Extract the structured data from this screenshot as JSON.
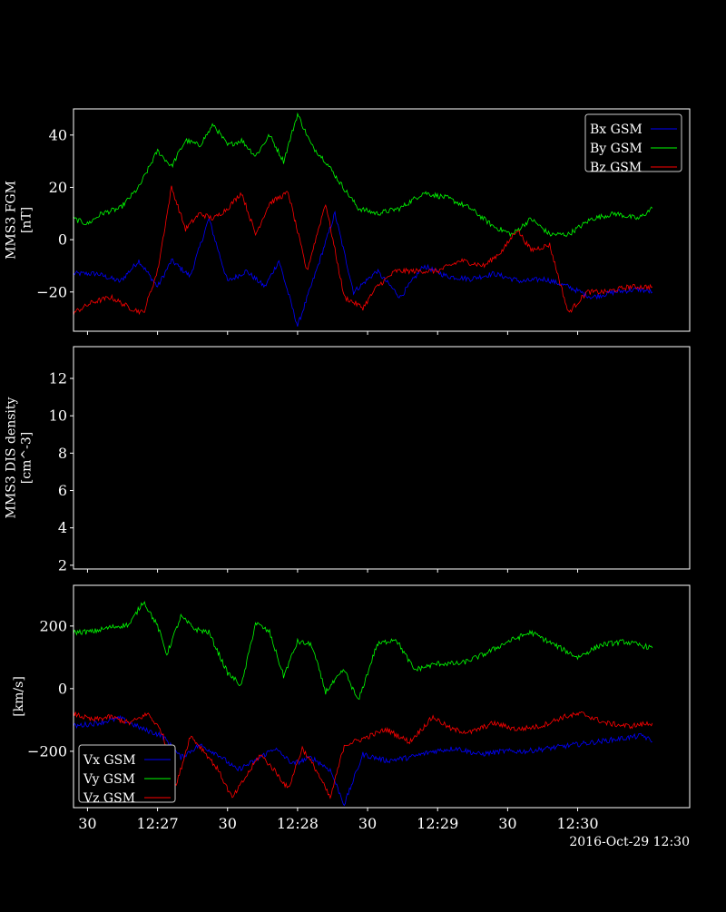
{
  "figure": {
    "background": "#000000",
    "foreground": "#ffffff",
    "date_label": "2016-Oct-29 12:30"
  },
  "chart_data": [
    {
      "type": "line",
      "id": "fgm",
      "ylabel_lines": [
        "MMS3 FGM",
        "[nT]"
      ],
      "xlim": [
        "12:26:24",
        "12:30:48"
      ],
      "ylim": [
        -35,
        50
      ],
      "yticks": [
        -20,
        0,
        20,
        40
      ],
      "ytick_labels": [
        "−20",
        "0",
        "20",
        "40"
      ],
      "legend_position": "upper-right",
      "grid": false,
      "series": [
        {
          "name": "Bx GSM",
          "color": "#0000ff",
          "t": [
            "12:26:24",
            "12:26:34",
            "12:26:44",
            "12:26:52",
            "12:27:00",
            "12:27:06",
            "12:27:14",
            "12:27:22",
            "12:27:30",
            "12:27:38",
            "12:27:46",
            "12:27:52",
            "12:28:00",
            "12:28:08",
            "12:28:16",
            "12:28:24",
            "12:28:34",
            "12:28:44",
            "12:28:54",
            "12:29:04",
            "12:29:14",
            "12:29:24",
            "12:29:36",
            "12:29:46",
            "12:29:56",
            "12:30:06",
            "12:30:16",
            "12:30:26",
            "12:30:32"
          ],
          "values": [
            -13,
            -13,
            -16,
            -8,
            -18,
            -8,
            -14,
            8,
            -16,
            -12,
            -18,
            -8,
            -33,
            -12,
            10,
            -20,
            -12,
            -22,
            -10,
            -14,
            -15,
            -13,
            -16,
            -15,
            -18,
            -22,
            -20,
            -19,
            -20
          ]
        },
        {
          "name": "By GSM",
          "color": "#00ff00",
          "t": [
            "12:26:24",
            "12:26:30",
            "12:26:36",
            "12:26:44",
            "12:26:52",
            "12:27:00",
            "12:27:06",
            "12:27:12",
            "12:27:18",
            "12:27:24",
            "12:27:30",
            "12:27:36",
            "12:27:42",
            "12:27:48",
            "12:27:54",
            "12:28:00",
            "12:28:06",
            "12:28:12",
            "12:28:18",
            "12:28:26",
            "12:28:34",
            "12:28:44",
            "12:28:54",
            "12:29:04",
            "12:29:14",
            "12:29:24",
            "12:29:32",
            "12:29:40",
            "12:29:48",
            "12:29:56",
            "12:30:06",
            "12:30:16",
            "12:30:26",
            "12:30:32"
          ],
          "values": [
            8,
            6,
            10,
            12,
            20,
            34,
            28,
            38,
            36,
            44,
            36,
            38,
            32,
            40,
            30,
            48,
            36,
            30,
            22,
            12,
            10,
            12,
            18,
            16,
            12,
            5,
            2,
            8,
            2,
            2,
            8,
            10,
            8,
            12
          ]
        },
        {
          "name": "Bz GSM",
          "color": "#ff0000",
          "t": [
            "12:26:24",
            "12:26:32",
            "12:26:40",
            "12:26:48",
            "12:26:54",
            "12:27:00",
            "12:27:06",
            "12:27:12",
            "12:27:18",
            "12:27:24",
            "12:27:30",
            "12:27:36",
            "12:27:42",
            "12:27:48",
            "12:27:56",
            "12:28:04",
            "12:28:12",
            "12:28:20",
            "12:28:28",
            "12:28:34",
            "12:28:42",
            "12:28:50",
            "12:29:00",
            "12:29:10",
            "12:29:20",
            "12:29:28",
            "12:29:34",
            "12:29:40",
            "12:29:48",
            "12:29:56",
            "12:30:04",
            "12:30:12",
            "12:30:22",
            "12:30:32"
          ],
          "values": [
            -28,
            -24,
            -22,
            -26,
            -28,
            -12,
            20,
            4,
            10,
            8,
            12,
            18,
            2,
            14,
            18,
            -12,
            14,
            -22,
            -26,
            -18,
            -12,
            -12,
            -12,
            -8,
            -10,
            -4,
            4,
            -4,
            -2,
            -28,
            -20,
            -20,
            -18,
            -18
          ]
        }
      ]
    },
    {
      "type": "line",
      "id": "dis-density",
      "ylabel_lines": [
        "MMS3 DIS density",
        "[cm^-3]"
      ],
      "xlim": [
        "12:26:24",
        "12:30:48"
      ],
      "ylim": [
        1.8,
        13.7
      ],
      "yticks": [
        2,
        4,
        6,
        8,
        10,
        12
      ],
      "ytick_labels": [
        "2",
        "4",
        "6",
        "8",
        "10",
        "12"
      ],
      "grid": false,
      "series": []
    },
    {
      "type": "line",
      "id": "velocity",
      "ylabel_lines": [
        "[km/s]"
      ],
      "xlim": [
        "12:26:24",
        "12:30:48"
      ],
      "ylim": [
        -380,
        330
      ],
      "yticks": [
        -200,
        0,
        200
      ],
      "ytick_labels": [
        "−200",
        "0",
        "200"
      ],
      "legend_position": "lower-left",
      "grid": false,
      "xtick_times": [
        "12:26:30",
        "12:27:00",
        "12:27:30",
        "12:28:00",
        "12:28:30",
        "12:29:00",
        "12:29:30",
        "12:30:00"
      ],
      "xtick_labels": [
        "30",
        "12:27",
        "30",
        "12:28",
        "30",
        "12:29",
        "30",
        "12:30"
      ],
      "series": [
        {
          "name": "Vx GSM",
          "color": "#0000ff",
          "t": [
            "12:26:24",
            "12:26:34",
            "12:26:44",
            "12:26:54",
            "12:27:02",
            "12:27:10",
            "12:27:18",
            "12:27:26",
            "12:27:34",
            "12:27:42",
            "12:27:50",
            "12:27:58",
            "12:28:06",
            "12:28:14",
            "12:28:20",
            "12:28:28",
            "12:28:38",
            "12:28:48",
            "12:28:58",
            "12:29:08",
            "12:29:18",
            "12:29:28",
            "12:29:38",
            "12:29:48",
            "12:29:58",
            "12:30:08",
            "12:30:18",
            "12:30:28",
            "12:30:32"
          ],
          "values": [
            -120,
            -110,
            -95,
            -130,
            -150,
            -220,
            -180,
            -210,
            -260,
            -230,
            -190,
            -240,
            -220,
            -260,
            -370,
            -210,
            -230,
            -220,
            -200,
            -190,
            -210,
            -200,
            -200,
            -190,
            -180,
            -170,
            -160,
            -150,
            -170
          ]
        },
        {
          "name": "Vy GSM",
          "color": "#00ff00",
          "t": [
            "12:26:24",
            "12:26:32",
            "12:26:40",
            "12:26:48",
            "12:26:54",
            "12:27:00",
            "12:27:04",
            "12:27:10",
            "12:27:16",
            "12:27:22",
            "12:27:30",
            "12:27:36",
            "12:27:42",
            "12:27:48",
            "12:27:54",
            "12:28:00",
            "12:28:06",
            "12:28:12",
            "12:28:20",
            "12:28:26",
            "12:28:34",
            "12:28:42",
            "12:28:50",
            "12:29:00",
            "12:29:10",
            "12:29:20",
            "12:29:30",
            "12:29:40",
            "12:29:50",
            "12:30:00",
            "12:30:10",
            "12:30:20",
            "12:30:32"
          ],
          "values": [
            180,
            182,
            196,
            205,
            280,
            200,
            110,
            230,
            190,
            180,
            50,
            10,
            210,
            180,
            40,
            150,
            140,
            -10,
            60,
            -40,
            140,
            160,
            60,
            80,
            80,
            110,
            150,
            180,
            140,
            100,
            140,
            150,
            130
          ]
        },
        {
          "name": "Vz GSM",
          "color": "#ff0000",
          "t": [
            "12:26:24",
            "12:26:32",
            "12:26:40",
            "12:26:48",
            "12:26:56",
            "12:27:02",
            "12:27:08",
            "12:27:14",
            "12:27:20",
            "12:27:26",
            "12:27:32",
            "12:27:38",
            "12:27:44",
            "12:27:50",
            "12:27:56",
            "12:28:02",
            "12:28:08",
            "12:28:14",
            "12:28:20",
            "12:28:28",
            "12:28:38",
            "12:28:48",
            "12:28:58",
            "12:29:06",
            "12:29:14",
            "12:29:24",
            "12:29:34",
            "12:29:44",
            "12:29:54",
            "12:30:02",
            "12:30:12",
            "12:30:22",
            "12:30:32"
          ],
          "values": [
            -80,
            -100,
            -90,
            -110,
            -80,
            -140,
            -310,
            -150,
            -200,
            -260,
            -350,
            -280,
            -210,
            -260,
            -320,
            -190,
            -260,
            -350,
            -180,
            -160,
            -130,
            -170,
            -90,
            -130,
            -140,
            -110,
            -130,
            -120,
            -90,
            -80,
            -110,
            -120,
            -110
          ]
        }
      ]
    }
  ]
}
